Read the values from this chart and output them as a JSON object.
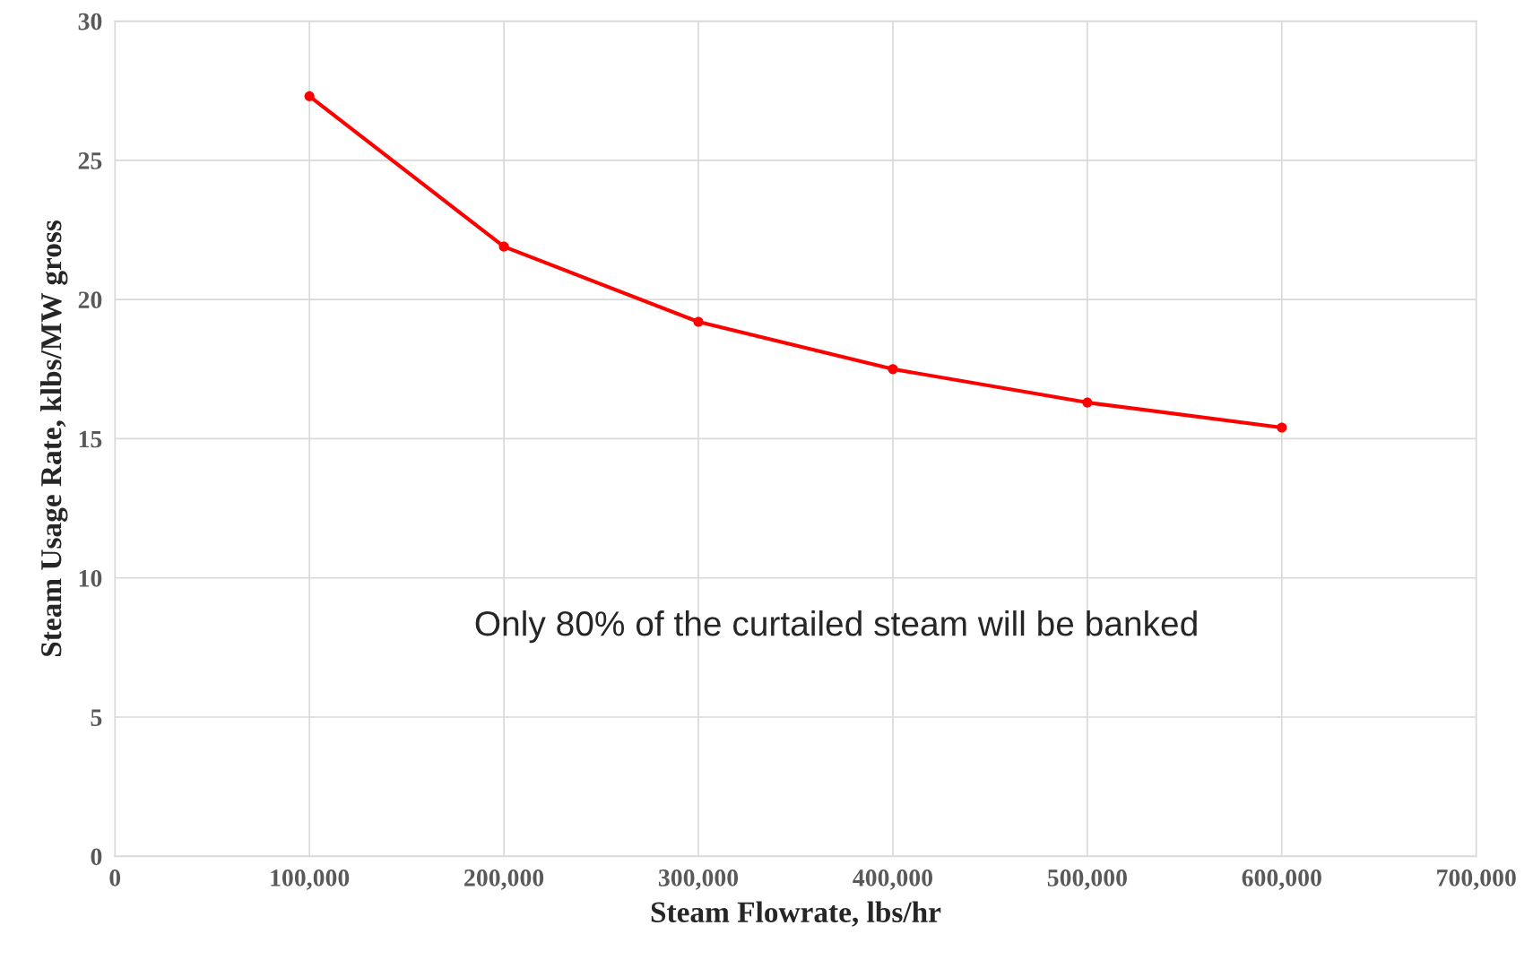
{
  "chart_data": {
    "type": "line",
    "xlabel": "Steam Flowrate, lbs/hr",
    "ylabel": "Steam Usage Rate, klbs/MW gross",
    "x": [
      100000,
      200000,
      300000,
      400000,
      500000,
      600000
    ],
    "series": [
      {
        "color": "#ff0000",
        "values": [
          27.3,
          21.9,
          19.2,
          17.5,
          16.3,
          15.4
        ]
      }
    ],
    "xlim": [
      0,
      700000
    ],
    "xticks": [
      0,
      {
        "value": 100000,
        "label": "100,000"
      },
      {
        "value": 200000,
        "label": "200,000"
      },
      {
        "value": 300000,
        "label": "300,000"
      },
      {
        "value": 400000,
        "label": "400,000"
      },
      {
        "value": 500000,
        "label": "500,000"
      },
      {
        "value": 600000,
        "label": "600,000"
      },
      {
        "value": 700000,
        "label": "700,000"
      }
    ],
    "ylim": [
      0,
      30
    ],
    "yticks": [
      0,
      5,
      10,
      15,
      20,
      25,
      30
    ],
    "grid": true,
    "marker": "circle",
    "line_style": "solid",
    "legend": false,
    "annotations": [
      "Only 80% of the curtailed steam will be banked"
    ]
  }
}
